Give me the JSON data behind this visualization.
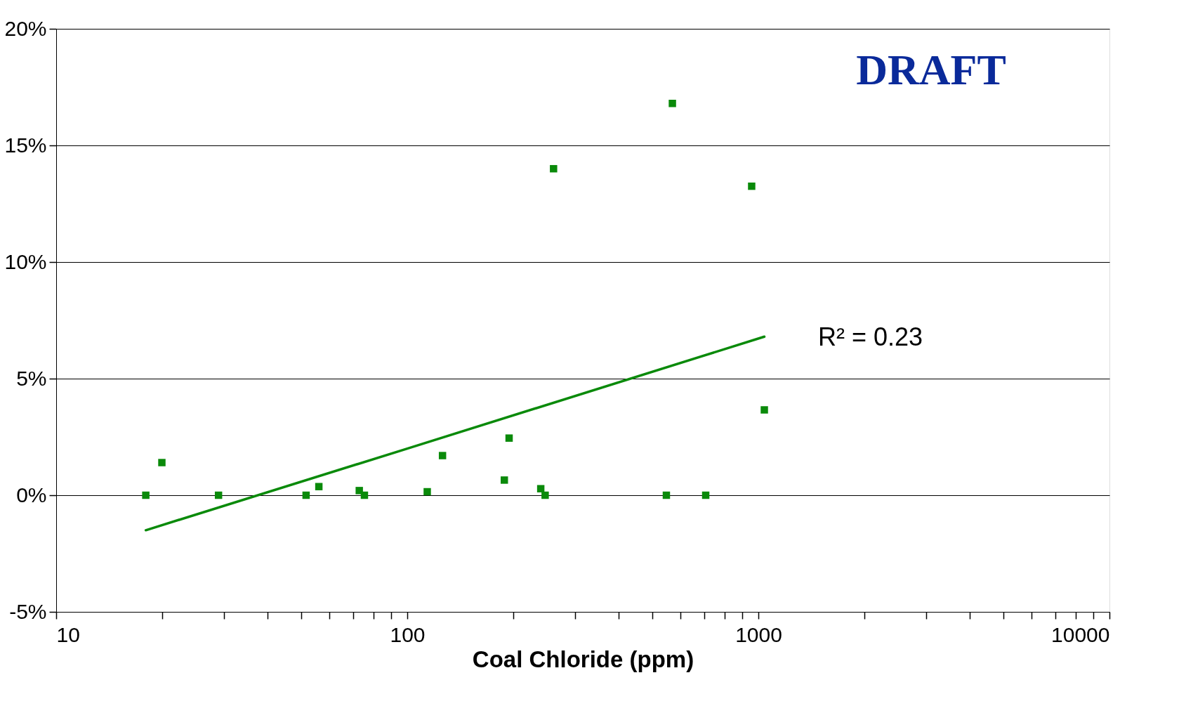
{
  "chart_data": {
    "type": "scatter",
    "xlabel": "Coal Chloride (ppm)",
    "log": "x",
    "grid": "y",
    "marker": "square",
    "xlim": [
      10,
      10000
    ],
    "ylim": [
      -5,
      20
    ],
    "xticks": [
      10,
      {
        "value": 20,
        "label": null
      },
      {
        "value": 30,
        "label": null
      },
      {
        "value": 40,
        "label": null
      },
      {
        "value": 50,
        "label": null
      },
      {
        "value": 60,
        "label": null
      },
      {
        "value": 70,
        "label": null
      },
      {
        "value": 80,
        "label": null
      },
      {
        "value": 90,
        "label": null
      },
      100,
      {
        "value": 200,
        "label": null
      },
      {
        "value": 300,
        "label": null
      },
      {
        "value": 400,
        "label": null
      },
      {
        "value": 500,
        "label": null
      },
      {
        "value": 600,
        "label": null
      },
      {
        "value": 700,
        "label": null
      },
      {
        "value": 800,
        "label": null
      },
      {
        "value": 900,
        "label": null
      },
      1000,
      {
        "value": 2000,
        "label": null
      },
      {
        "value": 3000,
        "label": null
      },
      {
        "value": 4000,
        "label": null
      },
      {
        "value": 5000,
        "label": null
      },
      {
        "value": 6000,
        "label": null
      },
      {
        "value": 7000,
        "label": null
      },
      {
        "value": 8000,
        "label": null
      },
      {
        "value": 9000,
        "label": null
      },
      10000
    ],
    "yticks": [
      {
        "value": -5,
        "label": "-5%"
      },
      {
        "value": 0,
        "label": "0%"
      },
      {
        "value": 5,
        "label": "5%"
      },
      {
        "value": 10,
        "label": "10%"
      },
      {
        "value": 15,
        "label": "15%"
      },
      {
        "value": 20,
        "label": "20%"
      }
    ],
    "series": [
      {
        "color": "#0a8a0a",
        "x": [
          18,
          20,
          29,
          51.5,
          56,
          73,
          75.5,
          114,
          126,
          189,
          195,
          240,
          247,
          261,
          547,
          569,
          708,
          957,
          1040
        ],
        "values": [
          0,
          1.4,
          0,
          0,
          0.37,
          0.2,
          0,
          0.15,
          1.7,
          0.65,
          2.45,
          0.28,
          0,
          14.0,
          0,
          16.8,
          0,
          13.25,
          3.66
        ]
      },
      {
        "type": "line",
        "marker": "none",
        "color": "#0a8a0a",
        "x": [
          18,
          100,
          1040
        ],
        "values": [
          -1.5,
          2.0,
          6.8
        ]
      }
    ],
    "annotations": [
      "DRAFT",
      "R² = 0.23"
    ]
  }
}
